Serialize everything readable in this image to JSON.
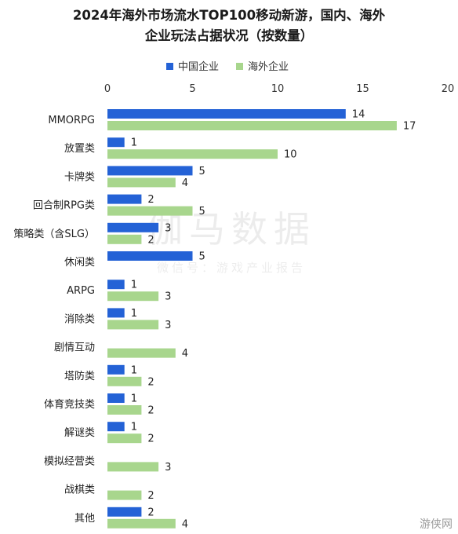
{
  "chart_data": {
    "type": "bar",
    "orientation": "horizontal",
    "title": [
      "2024年海外市场流水TOP100移动新游，国内、海外",
      "企业玩法占据状况（按数量）"
    ],
    "categories": [
      "MMORPG",
      "放置类",
      "卡牌类",
      "回合制RPG类",
      "策略类（含SLG）",
      "休闲类",
      "ARPG",
      "消除类",
      "剧情互动",
      "塔防类",
      "体育竞技类",
      "解谜类",
      "模拟经营类",
      "战棋类",
      "其他"
    ],
    "series": [
      {
        "name": "中国企业",
        "color": "#2462d6",
        "values": [
          14,
          1,
          5,
          2,
          3,
          5,
          1,
          1,
          null,
          1,
          1,
          1,
          null,
          null,
          2
        ]
      },
      {
        "name": "海外企业",
        "color": "#a8d68d",
        "values": [
          17,
          10,
          4,
          5,
          2,
          null,
          3,
          3,
          4,
          2,
          2,
          2,
          3,
          2,
          4
        ]
      }
    ],
    "xlim": [
      0,
      20
    ],
    "xticks": [
      0,
      5,
      10,
      15,
      20
    ],
    "xticks_position": "top",
    "legend_position": "top-left",
    "grid": false
  },
  "watermark": {
    "line1": "伽马数据",
    "line2": "微信号：游戏产业报告"
  },
  "corner_logo": "游侠网"
}
